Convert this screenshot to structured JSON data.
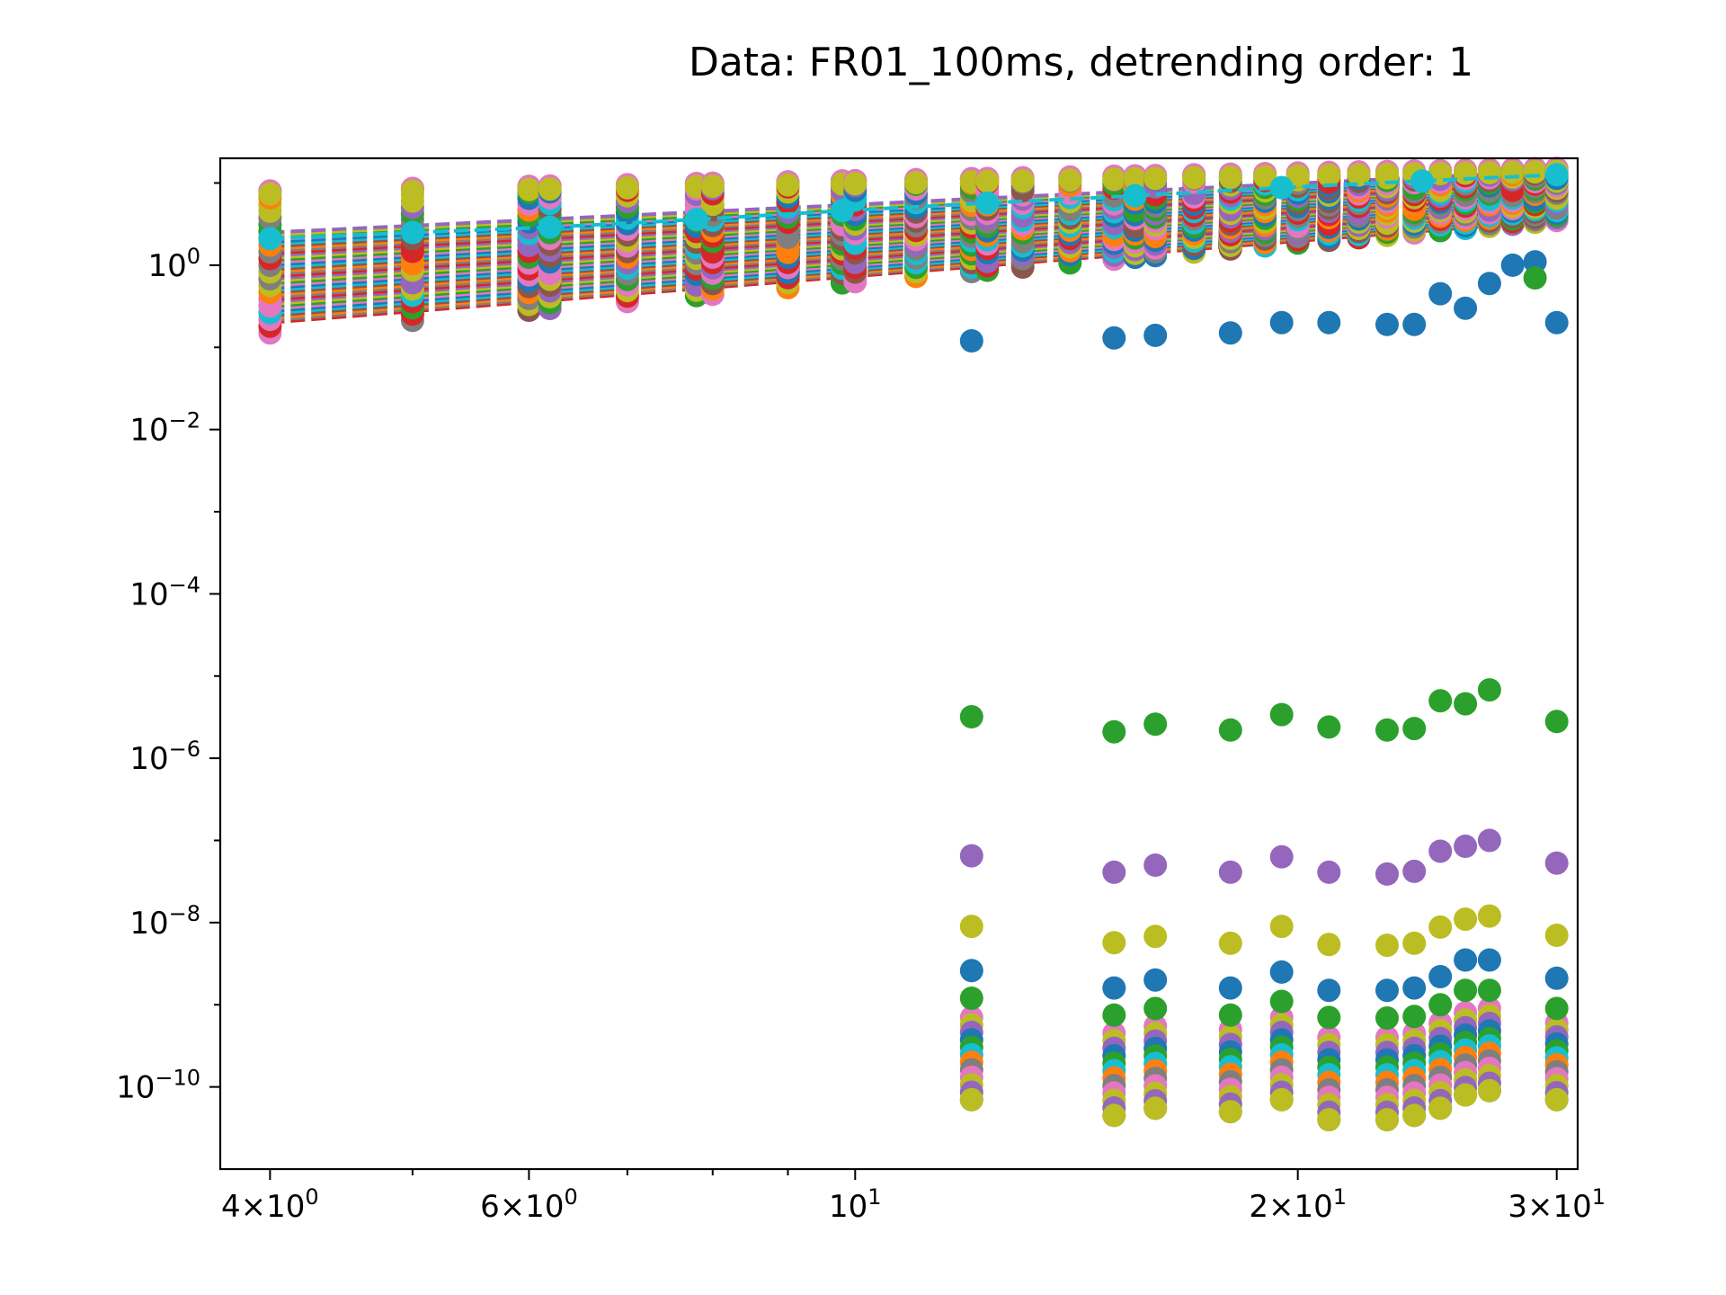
{
  "chart_data": {
    "type": "scatter",
    "title": "Data: FR01_100ms, detrending order: 1",
    "xlabel": "",
    "ylabel": "",
    "x_scale": "log",
    "y_scale": "log",
    "xlim": [
      3.7,
      31
    ],
    "ylim": [
      1e-11,
      20
    ],
    "grid": false,
    "legend": "none",
    "x_ticks": [
      {
        "value": 4,
        "mantissa": "4",
        "base": "10",
        "exp": "0"
      },
      {
        "value": 6,
        "mantissa": "6",
        "base": "10",
        "exp": "0"
      },
      {
        "value": 10,
        "mantissa": "",
        "base": "10",
        "exp": "1"
      },
      {
        "value": 20,
        "mantissa": "2",
        "base": "10",
        "exp": "1"
      },
      {
        "value": 30,
        "mantissa": "3",
        "base": "10",
        "exp": "1"
      }
    ],
    "y_ticks": [
      {
        "value": 1,
        "base": "10",
        "exp": "0"
      },
      {
        "value": 0.01,
        "base": "10",
        "exp": "−2"
      },
      {
        "value": 0.0001,
        "base": "10",
        "exp": "−4"
      },
      {
        "value": 1e-06,
        "base": "10",
        "exp": "−6"
      },
      {
        "value": 1e-08,
        "base": "10",
        "exp": "−8"
      },
      {
        "value": 1e-10,
        "base": "10",
        "exp": "−10"
      }
    ],
    "palette": [
      "#1f77b4",
      "#ff7f0e",
      "#2ca02c",
      "#d62728",
      "#9467bd",
      "#8c564b",
      "#e377c2",
      "#7f7f7f",
      "#bcbd22",
      "#17becf"
    ],
    "x_groups": [
      4,
      5,
      6,
      6.2,
      7,
      7.8,
      8,
      9,
      9.8,
      10,
      11,
      12,
      12.3,
      13,
      14,
      15,
      15.5,
      16,
      17,
      18,
      19,
      20,
      21,
      22,
      23,
      24,
      25,
      26,
      27,
      28,
      29,
      30
    ],
    "fitted_lines": {
      "count": 40,
      "style": "dashed",
      "x_range": [
        4,
        30
      ],
      "y_at_start_range": [
        0.2,
        2.5
      ],
      "y_at_end_range": [
        3.5,
        14
      ]
    },
    "top_cluster": {
      "y_range_start": [
        0.15,
        8
      ],
      "y_range_end": [
        3.5,
        15
      ]
    },
    "highlight_series": {
      "name": "",
      "color": "#17becf",
      "x": [
        4,
        5,
        6.2,
        7.8,
        9.8,
        12.3,
        15.5,
        19.5,
        24.3,
        30
      ],
      "y": [
        2.1,
        2.5,
        2.9,
        3.6,
        4.6,
        5.7,
        7.0,
        8.8,
        10.6,
        12.6
      ]
    },
    "low_series": [
      {
        "name": "",
        "color": "#1f77b4",
        "x": [
          12,
          15,
          16,
          18,
          19.5,
          21,
          23,
          24,
          25,
          26,
          27,
          28,
          29,
          30
        ],
        "y": [
          0.12,
          0.13,
          0.14,
          0.15,
          0.2,
          0.2,
          0.19,
          0.19,
          0.45,
          0.3,
          0.6,
          1.0,
          1.1,
          0.2
        ]
      },
      {
        "name": "",
        "color": "#2ca02c",
        "x": [
          12,
          15,
          16,
          18,
          19.5,
          21,
          23,
          24,
          25,
          26,
          27,
          29,
          30
        ],
        "y": [
          3.2e-06,
          2.1e-06,
          2.6e-06,
          2.2e-06,
          3.4e-06,
          2.4e-06,
          2.2e-06,
          2.3e-06,
          5e-06,
          4.6e-06,
          6.8e-06,
          0.7,
          2.8e-06
        ]
      },
      {
        "name": "",
        "color": "#9467bd",
        "x": [
          12,
          15,
          16,
          18,
          19.5,
          21,
          23,
          24,
          25,
          26,
          27,
          30
        ],
        "y": [
          6.5e-08,
          4.1e-08,
          5e-08,
          4.1e-08,
          6.3e-08,
          4.1e-08,
          3.9e-08,
          4.2e-08,
          7.4e-08,
          8.5e-08,
          1e-07,
          5.3e-08
        ]
      },
      {
        "name": "",
        "color": "#bcbd22",
        "x": [
          12,
          15,
          16,
          18,
          19.5,
          21,
          23,
          24,
          25,
          26,
          27,
          30
        ],
        "y": [
          9e-09,
          5.7e-09,
          6.8e-09,
          5.6e-09,
          9e-09,
          5.4e-09,
          5.3e-09,
          5.6e-09,
          8.8e-09,
          1.1e-08,
          1.2e-08,
          7e-09
        ]
      },
      {
        "name": "",
        "color": "#1f77b4",
        "x": [
          12,
          15,
          16,
          18,
          19.5,
          21,
          23,
          24,
          25,
          26,
          27,
          30
        ],
        "y": [
          2.6e-09,
          1.6e-09,
          2e-09,
          1.6e-09,
          2.5e-09,
          1.5e-09,
          1.5e-09,
          1.6e-09,
          2.2e-09,
          3.5e-09,
          3.5e-09,
          2.1e-09
        ]
      },
      {
        "name": "",
        "color": "#2ca02c",
        "x": [
          12,
          15,
          16,
          18,
          19.5,
          21,
          23,
          24,
          25,
          26,
          27,
          30
        ],
        "y": [
          1.2e-09,
          7.5e-10,
          9e-10,
          7.5e-10,
          1.1e-09,
          7e-10,
          6.9e-10,
          7.2e-10,
          1e-09,
          1.5e-09,
          1.5e-09,
          9e-10
        ]
      }
    ],
    "bottom_band": {
      "x": [
        12,
        15,
        16,
        18,
        19.5,
        21,
        23,
        24,
        25,
        26,
        27,
        30
      ],
      "y_min": [
        7e-11,
        4.5e-11,
        5.5e-11,
        5e-11,
        7e-11,
        4e-11,
        4e-11,
        4.5e-11,
        5.5e-11,
        8e-11,
        9e-11,
        7e-11
      ],
      "y_max": [
        7e-10,
        4.5e-10,
        5.5e-10,
        5e-10,
        7e-10,
        4e-10,
        4e-10,
        4.5e-10,
        6e-10,
        8e-10,
        9e-10,
        6e-10
      ]
    }
  }
}
